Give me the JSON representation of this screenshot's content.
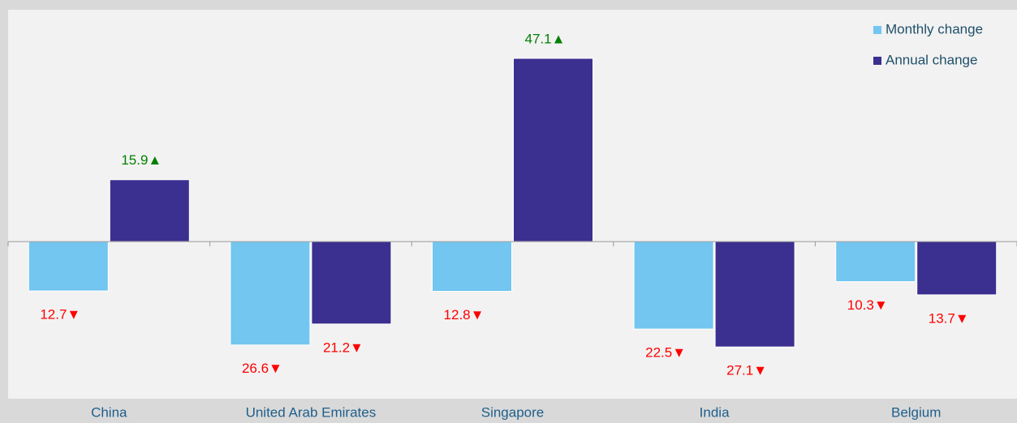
{
  "chart_data": {
    "type": "bar",
    "categories": [
      "China",
      "United Arab Emirates",
      "Singapore",
      "India",
      "Belgium"
    ],
    "series": [
      {
        "name": "Monthly change",
        "color": "#72c6f0",
        "values": [
          -12.7,
          -26.6,
          -12.8,
          -22.5,
          -10.3
        ],
        "value_labels": [
          "12.7▼",
          "26.6▼",
          "12.8▼",
          "22.5▼",
          "10.3▼"
        ]
      },
      {
        "name": "Annual change",
        "color": "#3b2f8f",
        "values": [
          15.9,
          -21.2,
          47.1,
          -27.1,
          -13.7
        ],
        "value_labels": [
          "15.9▲",
          "21.2▼",
          "47.1▲",
          "27.1▼",
          "13.7▼"
        ]
      }
    ],
    "ylim": [
      -40.4,
      59.6
    ],
    "label_colors": {
      "positive": "#008000",
      "negative": "#ff0000"
    },
    "legend": "top-right"
  }
}
